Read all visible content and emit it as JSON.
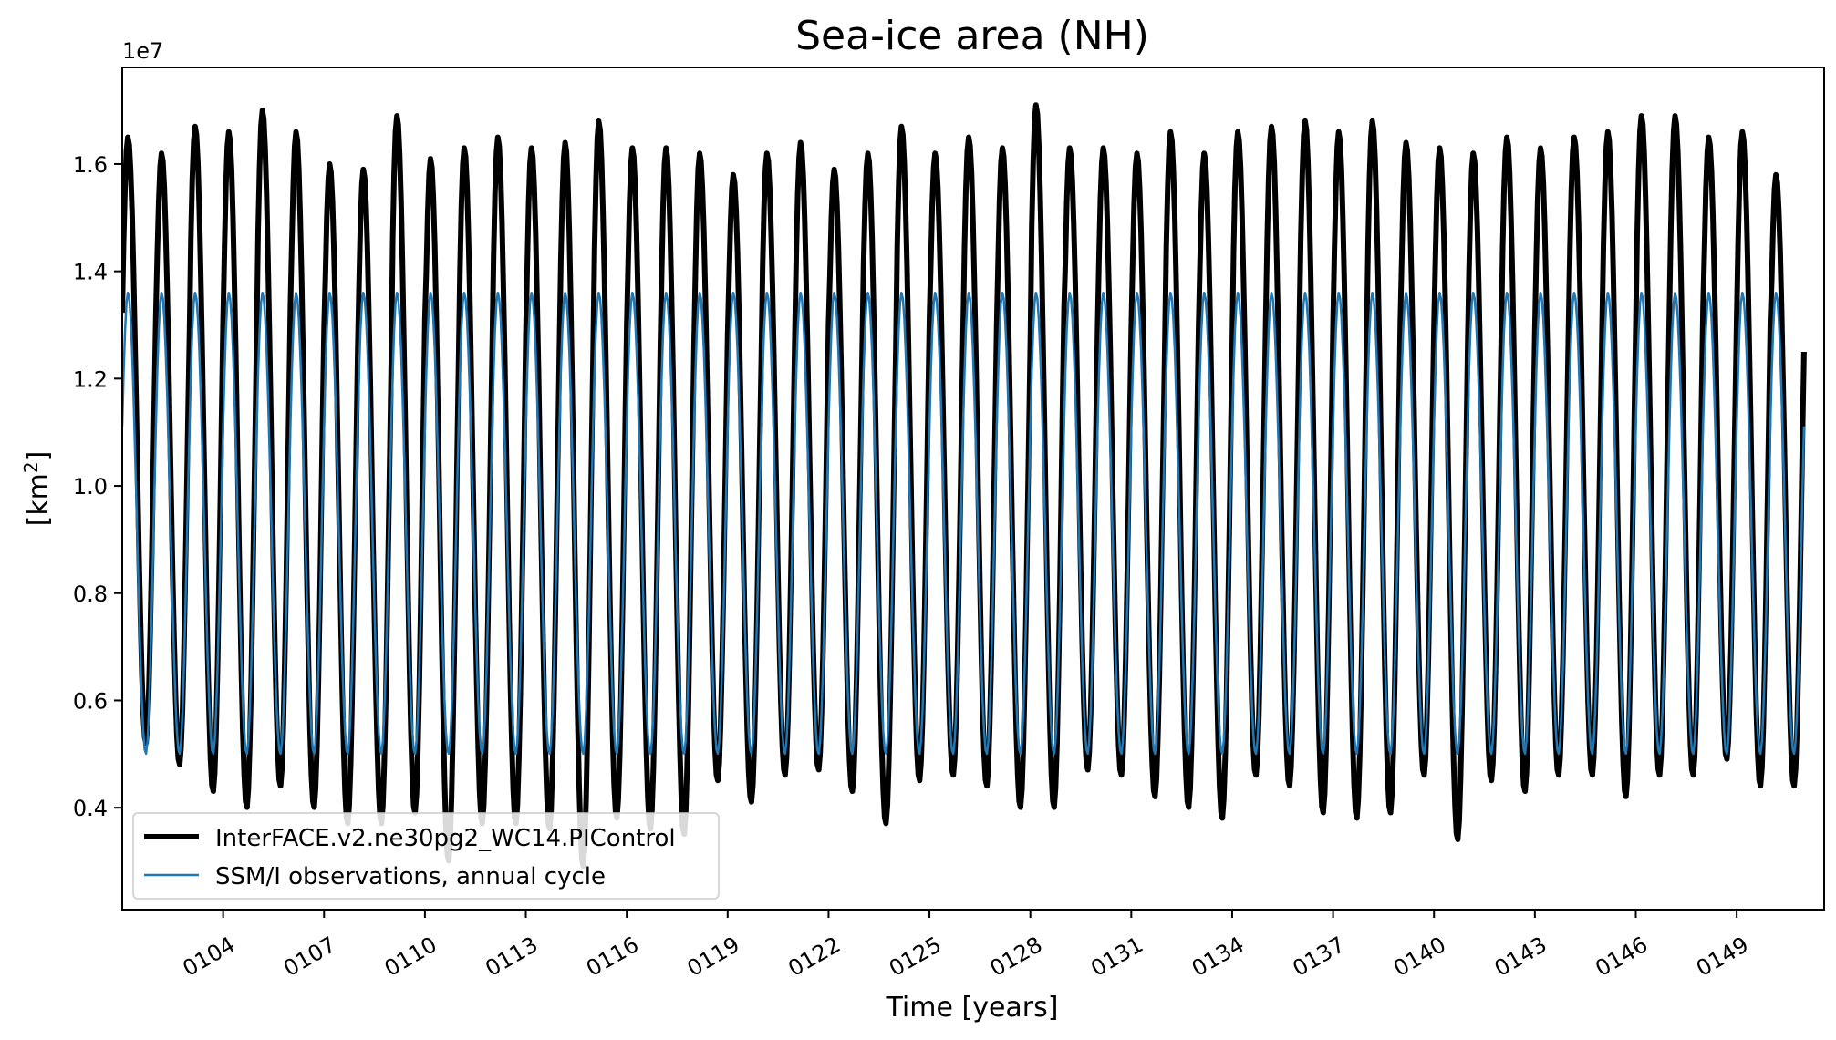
{
  "chart_data": {
    "type": "line",
    "title": "Sea-ice area (NH)",
    "xlabel": "Time [years]",
    "ylabel": "[km²]",
    "ylabel_base": "[km",
    "ylabel_sup": "2",
    "ylabel_end": "]",
    "y_offset_label": "1e7",
    "xlim": [
      101.0,
      151.6
    ],
    "ylim": [
      2.1,
      17.8
    ],
    "y_ticks": [
      {
        "value": 4,
        "label": "0.4"
      },
      {
        "value": 6,
        "label": "0.6"
      },
      {
        "value": 8,
        "label": "0.8"
      },
      {
        "value": 10,
        "label": "1.0"
      },
      {
        "value": 12,
        "label": "1.2"
      },
      {
        "value": 14,
        "label": "1.4"
      },
      {
        "value": 16,
        "label": "1.6"
      }
    ],
    "x_ticks": [
      {
        "value": 104,
        "label": "0104"
      },
      {
        "value": 107,
        "label": "0107"
      },
      {
        "value": 110,
        "label": "0110"
      },
      {
        "value": 113,
        "label": "0113"
      },
      {
        "value": 116,
        "label": "0116"
      },
      {
        "value": 119,
        "label": "0119"
      },
      {
        "value": 122,
        "label": "0122"
      },
      {
        "value": 125,
        "label": "0125"
      },
      {
        "value": 128,
        "label": "0128"
      },
      {
        "value": 131,
        "label": "0131"
      },
      {
        "value": 134,
        "label": "0134"
      },
      {
        "value": 137,
        "label": "0137"
      },
      {
        "value": 140,
        "label": "0140"
      },
      {
        "value": 143,
        "label": "0143"
      },
      {
        "value": 146,
        "label": "0146"
      },
      {
        "value": 149,
        "label": "0149"
      }
    ],
    "series": [
      {
        "name": "InterFACE.v2.ne30pg2_WC14.PIControl",
        "color": "#000000",
        "style": "thick",
        "annual_max": [
          16.5,
          16.2,
          16.7,
          16.6,
          17.0,
          16.6,
          16.0,
          15.9,
          16.9,
          16.1,
          16.3,
          16.5,
          16.3,
          16.4,
          16.8,
          16.3,
          16.3,
          16.2,
          15.8,
          16.2,
          16.4,
          15.9,
          16.2,
          16.7,
          16.2,
          16.5,
          16.3,
          17.1,
          16.3,
          16.3,
          16.2,
          16.6,
          16.2,
          16.6,
          16.7,
          16.8,
          16.6,
          16.8,
          16.4,
          16.3,
          16.2,
          16.5,
          16.3,
          16.5,
          16.6,
          16.9,
          16.9,
          16.5,
          16.6,
          15.8
        ],
        "annual_min": [
          5.2,
          4.8,
          4.3,
          4.0,
          4.4,
          4.0,
          3.7,
          3.7,
          3.9,
          3.0,
          3.7,
          3.7,
          3.6,
          2.9,
          3.8,
          3.6,
          3.5,
          4.5,
          4.1,
          4.6,
          4.7,
          4.3,
          3.7,
          4.5,
          4.6,
          4.4,
          4.0,
          4.0,
          4.7,
          4.6,
          4.2,
          4.0,
          3.8,
          4.6,
          4.4,
          3.9,
          3.8,
          3.9,
          4.6,
          3.4,
          4.5,
          4.3,
          4.6,
          4.6,
          4.2,
          4.6,
          4.6,
          4.9,
          4.4,
          4.4
        ]
      },
      {
        "name": "SSM/I observations, annual cycle",
        "color": "#1f77b4",
        "style": "thin",
        "annual_max": 13.6,
        "annual_min": 5.0
      }
    ],
    "legend_position": "lower-left",
    "grid": false
  }
}
